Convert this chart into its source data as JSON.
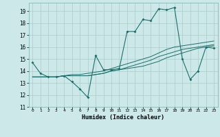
{
  "title": "",
  "xlabel": "Humidex (Indice chaleur)",
  "ylabel": "",
  "bg_color": "#cce8e8",
  "grid_color": "#aacccc",
  "line_color": "#1a6e6a",
  "xlim": [
    -0.5,
    23.5
  ],
  "ylim": [
    11,
    19.7
  ],
  "yticks": [
    11,
    12,
    13,
    14,
    15,
    16,
    17,
    18,
    19
  ],
  "xticks": [
    0,
    1,
    2,
    3,
    4,
    5,
    6,
    7,
    8,
    9,
    10,
    11,
    12,
    13,
    14,
    15,
    16,
    17,
    18,
    19,
    20,
    21,
    22,
    23
  ],
  "line1_x": [
    0,
    1,
    2,
    3,
    4,
    5,
    6,
    7,
    8,
    9,
    10,
    11,
    12,
    13,
    14,
    15,
    16,
    17,
    18,
    19,
    20,
    21,
    22,
    23
  ],
  "line1_y": [
    14.7,
    13.8,
    13.5,
    13.5,
    13.6,
    13.1,
    12.5,
    11.8,
    15.3,
    14.1,
    14.1,
    14.2,
    17.3,
    17.3,
    18.3,
    18.2,
    19.2,
    19.1,
    19.3,
    15.0,
    13.3,
    14.0,
    16.0,
    15.9
  ],
  "line2_x": [
    0,
    1,
    2,
    3,
    4,
    5,
    6,
    7,
    8,
    9,
    10,
    11,
    12,
    13,
    14,
    15,
    16,
    17,
    18,
    19,
    20,
    21,
    22,
    23
  ],
  "line2_y": [
    13.5,
    13.5,
    13.5,
    13.5,
    13.6,
    13.6,
    13.6,
    13.6,
    13.7,
    13.8,
    14.0,
    14.1,
    14.2,
    14.3,
    14.4,
    14.6,
    14.8,
    15.1,
    15.3,
    15.5,
    15.7,
    15.9,
    16.0,
    16.1
  ],
  "line3_x": [
    0,
    1,
    2,
    3,
    4,
    5,
    6,
    7,
    8,
    9,
    10,
    11,
    12,
    13,
    14,
    15,
    16,
    17,
    18,
    19,
    20,
    21,
    22,
    23
  ],
  "line3_y": [
    13.5,
    13.5,
    13.5,
    13.5,
    13.6,
    13.6,
    13.6,
    13.6,
    13.7,
    13.8,
    14.0,
    14.1,
    14.3,
    14.5,
    14.7,
    14.9,
    15.2,
    15.4,
    15.6,
    15.8,
    15.9,
    16.0,
    16.1,
    16.2
  ],
  "line4_x": [
    0,
    1,
    2,
    3,
    4,
    5,
    6,
    7,
    8,
    9,
    10,
    11,
    12,
    13,
    14,
    15,
    16,
    17,
    18,
    19,
    20,
    21,
    22,
    23
  ],
  "line4_y": [
    13.5,
    13.5,
    13.5,
    13.5,
    13.6,
    13.7,
    13.7,
    13.8,
    13.9,
    14.0,
    14.2,
    14.4,
    14.6,
    14.8,
    15.0,
    15.2,
    15.5,
    15.8,
    16.0,
    16.1,
    16.2,
    16.3,
    16.4,
    16.5
  ]
}
